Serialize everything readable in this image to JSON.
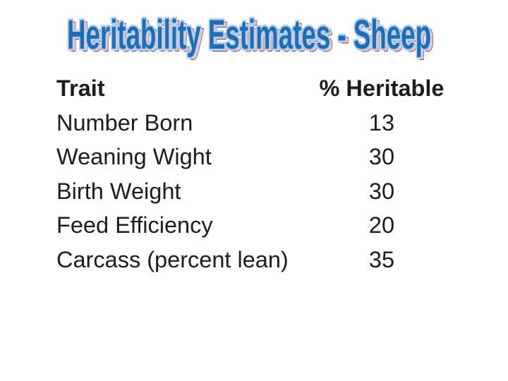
{
  "title": {
    "text": "Heritability Estimates - Sheep"
  },
  "colors": {
    "title_fill": "#1f6db7",
    "title_outline": "#b3d1ee",
    "title_shadow": "#8e3740",
    "body_text": "#1c1c1c",
    "background": "#ffffff"
  },
  "table": {
    "header": {
      "trait": "Trait",
      "value": "% Heritable"
    },
    "rows": [
      {
        "trait": "Number Born",
        "value": "13"
      },
      {
        "trait": "Weaning Wight",
        "value": "30"
      },
      {
        "trait": "Birth Weight",
        "value": "30"
      },
      {
        "trait": "Feed Efficiency",
        "value": "20"
      },
      {
        "trait": "Carcass (percent lean)",
        "value": "35"
      }
    ]
  },
  "chart_data": {
    "type": "table",
    "title": "Heritability Estimates - Sheep",
    "columns": [
      "Trait",
      "% Heritable"
    ],
    "rows": [
      [
        "Number Born",
        13
      ],
      [
        "Weaning Wight",
        30
      ],
      [
        "Birth Weight",
        30
      ],
      [
        "Feed Efficiency",
        20
      ],
      [
        "Carcass (percent lean)",
        35
      ]
    ]
  }
}
